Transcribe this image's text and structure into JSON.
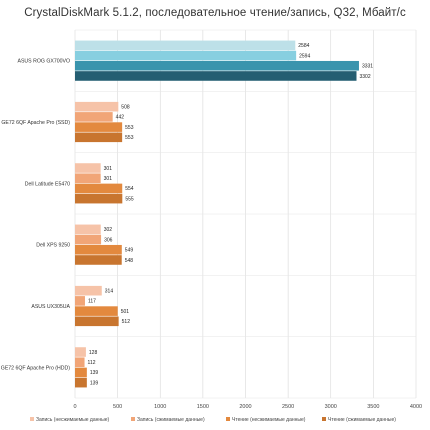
{
  "chart_data": {
    "type": "bar",
    "orientation": "horizontal",
    "title": "CrystalDiskMark 5.1.2, последовательное чтение/запись, Q32, Мбайт/с",
    "categories": [
      "ASUS ROG GX700VO",
      "GE72 6QF Apache Pro (SSD)",
      "Dell Latitude E5470",
      "Dell XPS 9250",
      "ASUS UX305UA",
      "GE72 6QF Apache Pro (HDD)"
    ],
    "series": [
      {
        "name": "Запись (несжимаемые данные)",
        "color": "#f6c3a8",
        "values": [
          2584,
          508,
          301,
          302,
          314,
          128
        ]
      },
      {
        "name": "Запись (сжимаемые данные)",
        "color": "#f1a577",
        "values": [
          2594,
          442,
          301,
          306,
          117,
          112
        ]
      },
      {
        "name": "Чтение (несжимаемые данные)",
        "color": "#e3893e",
        "values": [
          3331,
          553,
          554,
          549,
          501,
          139
        ]
      },
      {
        "name": "Чтение (сжимаемые данные)",
        "color": "#c8752f",
        "values": [
          3302,
          553,
          555,
          548,
          512,
          139
        ]
      }
    ],
    "first_category_colors": [
      "#bde0e8",
      "#87cfe0",
      "#3a94ad",
      "#245e72"
    ],
    "xlim": [
      0,
      4000
    ],
    "xticks": [
      0,
      500,
      1000,
      1500,
      2000,
      2500,
      3000,
      3500,
      4000
    ],
    "grid": true,
    "legend": "bottom"
  }
}
